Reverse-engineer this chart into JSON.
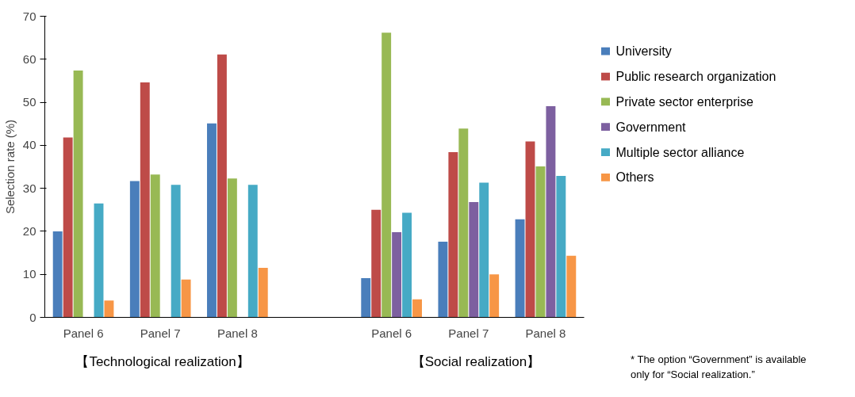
{
  "chart_data": {
    "type": "bar",
    "ylabel": "Selection rate (%)",
    "categories": [
      "Panel 6",
      "Panel 7",
      "Panel 8",
      null,
      "Panel 6",
      "Panel 7",
      "Panel 8"
    ],
    "series": [
      {
        "name": "University",
        "color": "#4a7ebb",
        "values": [
          20.0,
          31.7,
          45.1,
          null,
          9.1,
          17.6,
          22.8
        ]
      },
      {
        "name": "Public research organization",
        "color": "#be4b48",
        "values": [
          41.8,
          54.6,
          61.1,
          null,
          25.0,
          38.4,
          40.9
        ]
      },
      {
        "name": "Private sector enterprise",
        "color": "#98b954",
        "values": [
          57.4,
          33.2,
          32.3,
          null,
          66.2,
          43.9,
          35.1
        ]
      },
      {
        "name": "Government",
        "color": "#7d60a0",
        "values": [
          null,
          null,
          null,
          null,
          19.8,
          26.8,
          49.1
        ]
      },
      {
        "name": "Multiple sector alliance",
        "color": "#46aac5",
        "values": [
          26.5,
          30.8,
          30.8,
          null,
          24.3,
          31.3,
          32.9
        ]
      },
      {
        "name": "Others",
        "color": "#f79646",
        "values": [
          3.9,
          8.8,
          11.5,
          null,
          4.2,
          10.0,
          14.3
        ]
      }
    ],
    "ylim": [
      0,
      70
    ],
    "yticks": [
      0,
      10,
      20,
      30,
      40,
      50,
      60,
      70
    ],
    "grid": false,
    "legend": "right",
    "annotations": [
      "【Technological realization】",
      "【Social realization】",
      "* The option “Government” is available only for “Social realization.”"
    ]
  }
}
